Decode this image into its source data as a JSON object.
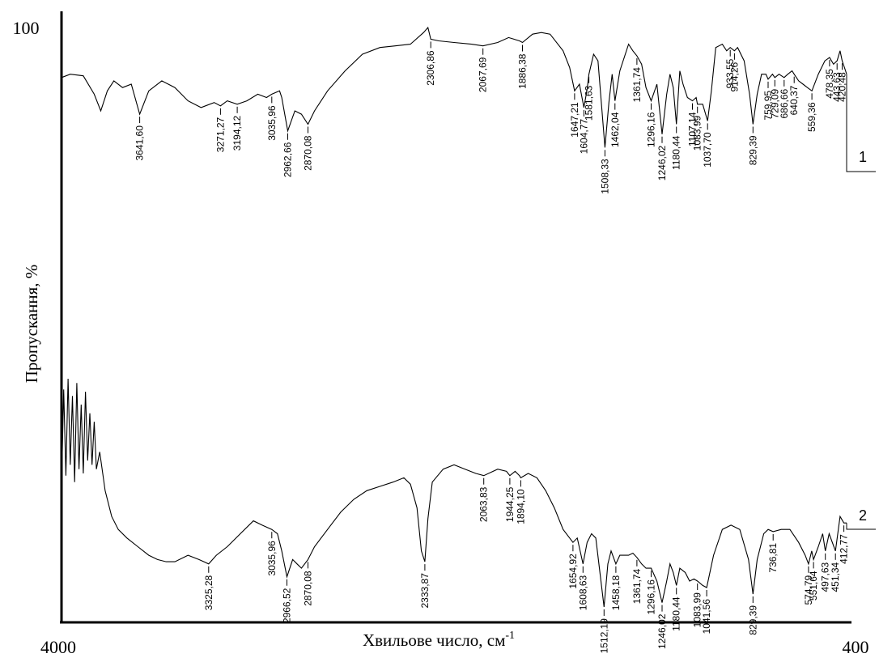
{
  "chart_data": {
    "type": "line",
    "xlabel": "Хвильове число, см",
    "xlabel_sup": "-1",
    "ylabel": "Пропускання, %",
    "x_ticks": [
      4000,
      400
    ],
    "y_ticks": [
      100
    ],
    "xlim": [
      4000,
      400
    ],
    "x_reversed": true,
    "series": [
      {
        "name": "1",
        "points": [
          [
            4000,
            70
          ],
          [
            3960,
            72
          ],
          [
            3900,
            71
          ],
          [
            3850,
            60
          ],
          [
            3820,
            50
          ],
          [
            3790,
            62
          ],
          [
            3760,
            68
          ],
          [
            3720,
            64
          ],
          [
            3680,
            66
          ],
          [
            3641.6,
            48
          ],
          [
            3600,
            62
          ],
          [
            3540,
            68
          ],
          [
            3480,
            64
          ],
          [
            3420,
            56
          ],
          [
            3360,
            52
          ],
          [
            3300,
            55
          ],
          [
            3271.27,
            53
          ],
          [
            3240,
            56
          ],
          [
            3194.12,
            54
          ],
          [
            3150,
            56
          ],
          [
            3100,
            60
          ],
          [
            3060,
            58
          ],
          [
            3035.96,
            60
          ],
          [
            3000,
            62
          ],
          [
            2990,
            58
          ],
          [
            2962.66,
            38
          ],
          [
            2930,
            50
          ],
          [
            2900,
            48
          ],
          [
            2870.08,
            42
          ],
          [
            2840,
            50
          ],
          [
            2780,
            62
          ],
          [
            2700,
            74
          ],
          [
            2620,
            84
          ],
          [
            2540,
            88
          ],
          [
            2470,
            89
          ],
          [
            2400,
            90
          ],
          [
            2340,
            97
          ],
          [
            2320,
            100
          ],
          [
            2306.86,
            93
          ],
          [
            2270,
            92
          ],
          [
            2200,
            91
          ],
          [
            2120,
            90
          ],
          [
            2067.69,
            89
          ],
          [
            2000,
            91
          ],
          [
            1950,
            94
          ],
          [
            1900,
            92
          ],
          [
            1886.38,
            91
          ],
          [
            1840,
            96
          ],
          [
            1800,
            97
          ],
          [
            1760,
            96
          ],
          [
            1700,
            86
          ],
          [
            1670,
            76
          ],
          [
            1647.21,
            62
          ],
          [
            1625,
            66
          ],
          [
            1604.77,
            52
          ],
          [
            1590,
            63
          ],
          [
            1581.63,
            72
          ],
          [
            1560,
            84
          ],
          [
            1540,
            80
          ],
          [
            1508.33,
            28
          ],
          [
            1490,
            55
          ],
          [
            1475,
            72
          ],
          [
            1462.04,
            56
          ],
          [
            1440,
            74
          ],
          [
            1400,
            90
          ],
          [
            1380,
            86
          ],
          [
            1361.74,
            83
          ],
          [
            1340,
            78
          ],
          [
            1320,
            64
          ],
          [
            1296.16,
            56
          ],
          [
            1270,
            66
          ],
          [
            1246.02,
            36
          ],
          [
            1225,
            60
          ],
          [
            1210,
            72
          ],
          [
            1195,
            64
          ],
          [
            1180.44,
            42
          ],
          [
            1165,
            74
          ],
          [
            1150,
            66
          ],
          [
            1130,
            58
          ],
          [
            1107.14,
            56
          ],
          [
            1090,
            58
          ],
          [
            1083.99,
            54
          ],
          [
            1060,
            54
          ],
          [
            1037.7,
            44
          ],
          [
            1020,
            62
          ],
          [
            1000,
            88
          ],
          [
            970,
            90
          ],
          [
            950,
            86
          ],
          [
            933.55,
            88
          ],
          [
            914.26,
            86
          ],
          [
            900,
            88
          ],
          [
            870,
            80
          ],
          [
            845,
            60
          ],
          [
            829.39,
            42
          ],
          [
            810,
            60
          ],
          [
            790,
            72
          ],
          [
            770,
            72
          ],
          [
            759.95,
            69
          ],
          [
            740,
            72
          ],
          [
            729.09,
            70
          ],
          [
            710,
            72
          ],
          [
            686.66,
            70
          ],
          [
            670,
            72
          ],
          [
            650,
            74
          ],
          [
            640.37,
            72
          ],
          [
            620,
            68
          ],
          [
            600,
            66
          ],
          [
            580,
            64
          ],
          [
            559.36,
            62
          ],
          [
            530,
            72
          ],
          [
            500,
            80
          ],
          [
            478.35,
            82
          ],
          [
            460,
            78
          ],
          [
            443.63,
            80
          ],
          [
            430,
            86
          ],
          [
            420.48,
            80
          ],
          [
            405,
            74
          ],
          [
            400,
            72
          ]
        ],
        "peaks": [
          {
            "x": 3641.6,
            "label": "3641,60"
          },
          {
            "x": 3271.27,
            "label": "3271,27"
          },
          {
            "x": 3194.12,
            "label": "3194,12"
          },
          {
            "x": 3035.96,
            "label": "3035,96"
          },
          {
            "x": 2962.66,
            "label": "2962,66"
          },
          {
            "x": 2870.08,
            "label": "2870,08"
          },
          {
            "x": 2306.86,
            "label": "2306,86"
          },
          {
            "x": 2067.69,
            "label": "2067,69"
          },
          {
            "x": 1886.38,
            "label": "1886,38"
          },
          {
            "x": 1647.21,
            "label": "1647,21"
          },
          {
            "x": 1604.77,
            "label": "1604,77"
          },
          {
            "x": 1581.63,
            "label": "1581,63"
          },
          {
            "x": 1508.33,
            "label": "1508,33"
          },
          {
            "x": 1462.04,
            "label": "1462,04"
          },
          {
            "x": 1361.74,
            "label": "1361,74"
          },
          {
            "x": 1296.16,
            "label": "1296,16"
          },
          {
            "x": 1246.02,
            "label": "1246,02"
          },
          {
            "x": 1180.44,
            "label": "1180,44"
          },
          {
            "x": 1107.14,
            "label": "1107,14"
          },
          {
            "x": 1083.99,
            "label": "1083,99"
          },
          {
            "x": 1037.7,
            "label": "1037,70"
          },
          {
            "x": 933.55,
            "label": "933,55"
          },
          {
            "x": 914.26,
            "label": "914,26"
          },
          {
            "x": 829.39,
            "label": "829,39"
          },
          {
            "x": 759.95,
            "label": "759,95"
          },
          {
            "x": 729.09,
            "label": "729,09"
          },
          {
            "x": 686.66,
            "label": "686,66"
          },
          {
            "x": 640.37,
            "label": "640,37"
          },
          {
            "x": 559.36,
            "label": "559,36"
          },
          {
            "x": 478.35,
            "label": "478,35"
          },
          {
            "x": 443.63,
            "label": "443,63"
          },
          {
            "x": 420.48,
            "label": "420,48"
          }
        ]
      },
      {
        "name": "2",
        "points": [
          [
            4000,
            50
          ],
          [
            3990,
            95
          ],
          [
            3980,
            55
          ],
          [
            3970,
            100
          ],
          [
            3960,
            60
          ],
          [
            3950,
            92
          ],
          [
            3940,
            52
          ],
          [
            3930,
            98
          ],
          [
            3920,
            58
          ],
          [
            3910,
            88
          ],
          [
            3900,
            56
          ],
          [
            3890,
            94
          ],
          [
            3880,
            62
          ],
          [
            3870,
            84
          ],
          [
            3860,
            60
          ],
          [
            3850,
            80
          ],
          [
            3840,
            58
          ],
          [
            3825,
            66
          ],
          [
            3800,
            48
          ],
          [
            3770,
            36
          ],
          [
            3740,
            30
          ],
          [
            3700,
            26
          ],
          [
            3650,
            22
          ],
          [
            3600,
            18
          ],
          [
            3560,
            16
          ],
          [
            3520,
            15
          ],
          [
            3480,
            15
          ],
          [
            3420,
            18
          ],
          [
            3370,
            16
          ],
          [
            3325.28,
            14
          ],
          [
            3290,
            18
          ],
          [
            3240,
            22
          ],
          [
            3180,
            28
          ],
          [
            3120,
            34
          ],
          [
            3080,
            32
          ],
          [
            3035.96,
            30
          ],
          [
            3010,
            28
          ],
          [
            2990,
            20
          ],
          [
            2966.52,
            8
          ],
          [
            2940,
            16
          ],
          [
            2920,
            14
          ],
          [
            2900,
            12
          ],
          [
            2870.08,
            16
          ],
          [
            2840,
            22
          ],
          [
            2780,
            30
          ],
          [
            2720,
            38
          ],
          [
            2660,
            44
          ],
          [
            2600,
            48
          ],
          [
            2540,
            50
          ],
          [
            2480,
            52
          ],
          [
            2430,
            54
          ],
          [
            2400,
            51
          ],
          [
            2370,
            40
          ],
          [
            2350,
            20
          ],
          [
            2333.87,
            15
          ],
          [
            2320,
            35
          ],
          [
            2300,
            52
          ],
          [
            2250,
            58
          ],
          [
            2200,
            60
          ],
          [
            2150,
            58
          ],
          [
            2100,
            56
          ],
          [
            2063.83,
            55
          ],
          [
            2000,
            58
          ],
          [
            1960,
            57
          ],
          [
            1944.25,
            55
          ],
          [
            1920,
            57
          ],
          [
            1900,
            55
          ],
          [
            1894.1,
            54
          ],
          [
            1860,
            56
          ],
          [
            1820,
            54
          ],
          [
            1780,
            48
          ],
          [
            1740,
            40
          ],
          [
            1700,
            30
          ],
          [
            1670,
            26
          ],
          [
            1654.92,
            24
          ],
          [
            1635,
            26
          ],
          [
            1608.63,
            14
          ],
          [
            1590,
            24
          ],
          [
            1570,
            28
          ],
          [
            1550,
            26
          ],
          [
            1512.19,
            -6
          ],
          [
            1495,
            14
          ],
          [
            1480,
            20
          ],
          [
            1458.18,
            14
          ],
          [
            1440,
            18
          ],
          [
            1400,
            18
          ],
          [
            1380,
            19
          ],
          [
            1361.74,
            17
          ],
          [
            1340,
            14
          ],
          [
            1320,
            12
          ],
          [
            1296.16,
            12
          ],
          [
            1270,
            6
          ],
          [
            1246.02,
            -4
          ],
          [
            1225,
            6
          ],
          [
            1210,
            14
          ],
          [
            1195,
            10
          ],
          [
            1180.44,
            4
          ],
          [
            1165,
            12
          ],
          [
            1140,
            10
          ],
          [
            1120,
            6
          ],
          [
            1100,
            7
          ],
          [
            1083.99,
            6
          ],
          [
            1060,
            4
          ],
          [
            1041.56,
            3
          ],
          [
            1010,
            18
          ],
          [
            970,
            30
          ],
          [
            930,
            32
          ],
          [
            890,
            30
          ],
          [
            850,
            16
          ],
          [
            829.39,
            0
          ],
          [
            810,
            16
          ],
          [
            780,
            28
          ],
          [
            760,
            30
          ],
          [
            736.81,
            29
          ],
          [
            700,
            30
          ],
          [
            660,
            30
          ],
          [
            620,
            24
          ],
          [
            590,
            18
          ],
          [
            574.79,
            14
          ],
          [
            560,
            20
          ],
          [
            551.64,
            16
          ],
          [
            530,
            22
          ],
          [
            510,
            28
          ],
          [
            497.63,
            20
          ],
          [
            480,
            28
          ],
          [
            451.34,
            20
          ],
          [
            430,
            36
          ],
          [
            412.77,
            33
          ],
          [
            400,
            33
          ]
        ],
        "peaks": [
          {
            "x": 3325.28,
            "label": "3325,28"
          },
          {
            "x": 3035.96,
            "label": "3035,96"
          },
          {
            "x": 2966.52,
            "label": "2966,52"
          },
          {
            "x": 2870.08,
            "label": "2870,08"
          },
          {
            "x": 2333.87,
            "label": "2333,87"
          },
          {
            "x": 2063.83,
            "label": "2063,83"
          },
          {
            "x": 1944.25,
            "label": "1944,25"
          },
          {
            "x": 1894.1,
            "label": "1894,10"
          },
          {
            "x": 1654.92,
            "label": "1654,92"
          },
          {
            "x": 1608.63,
            "label": "1608,63"
          },
          {
            "x": 1512.19,
            "label": "1512,19"
          },
          {
            "x": 1458.18,
            "label": "1458,18"
          },
          {
            "x": 1361.74,
            "label": "1361,74"
          },
          {
            "x": 1296.16,
            "label": "1296,16"
          },
          {
            "x": 1246.02,
            "label": "1246,02"
          },
          {
            "x": 1180.44,
            "label": "1180,44"
          },
          {
            "x": 1083.99,
            "label": "1083,99"
          },
          {
            "x": 1041.56,
            "label": "1041,56"
          },
          {
            "x": 829.39,
            "label": "829,39"
          },
          {
            "x": 736.81,
            "label": "736,81"
          },
          {
            "x": 574.79,
            "label": "574,79"
          },
          {
            "x": 551.64,
            "label": "551,64"
          },
          {
            "x": 497.63,
            "label": "497,63"
          },
          {
            "x": 451.34,
            "label": "451,34"
          },
          {
            "x": 412.77,
            "label": "412,77"
          }
        ]
      }
    ]
  }
}
